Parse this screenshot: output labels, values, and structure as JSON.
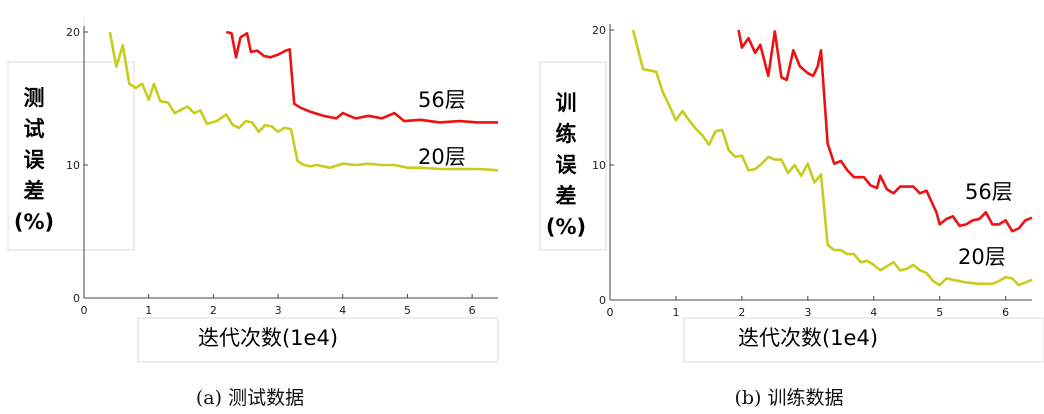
{
  "chart_data": [
    {
      "type": "line",
      "caption": "(a) 测试数据",
      "ylabel": "测试误差(%)",
      "xlabel": "迭代次数(1e4)",
      "xlim": [
        0,
        6.4
      ],
      "ylim": [
        0,
        20
      ],
      "xticks": [
        0,
        1,
        2,
        3,
        4,
        5,
        6
      ],
      "yticks": [
        0,
        10,
        20
      ],
      "series": [
        {
          "name": "56层",
          "color": "#ee1111",
          "points": [
            [
              2.2,
              20
            ],
            [
              2.28,
              19.9
            ],
            [
              2.35,
              18.1
            ],
            [
              2.42,
              19.6
            ],
            [
              2.52,
              19.9
            ],
            [
              2.58,
              18.5
            ],
            [
              2.68,
              18.6
            ],
            [
              2.78,
              18.2
            ],
            [
              2.88,
              18.1
            ],
            [
              3.0,
              18.3
            ],
            [
              3.12,
              18.6
            ],
            [
              3.18,
              18.7
            ],
            [
              3.25,
              14.6
            ],
            [
              3.35,
              14.3
            ],
            [
              3.5,
              14.0
            ],
            [
              3.7,
              13.7
            ],
            [
              3.9,
              13.5
            ],
            [
              4.0,
              13.9
            ],
            [
              4.2,
              13.5
            ],
            [
              4.4,
              13.7
            ],
            [
              4.6,
              13.5
            ],
            [
              4.8,
              13.9
            ],
            [
              4.95,
              13.3
            ],
            [
              5.2,
              13.4
            ],
            [
              5.5,
              13.2
            ],
            [
              5.8,
              13.3
            ],
            [
              6.1,
              13.2
            ],
            [
              6.4,
              13.2
            ]
          ]
        },
        {
          "name": "20层",
          "color": "#c8cc1c",
          "points": [
            [
              0.4,
              20
            ],
            [
              0.5,
              17.4
            ],
            [
              0.6,
              19
            ],
            [
              0.7,
              16.1
            ],
            [
              0.8,
              15.8
            ],
            [
              0.9,
              16.1
            ],
            [
              1.0,
              14.9
            ],
            [
              1.08,
              16.1
            ],
            [
              1.18,
              14.8
            ],
            [
              1.3,
              14.7
            ],
            [
              1.4,
              13.9
            ],
            [
              1.6,
              14.4
            ],
            [
              1.7,
              13.9
            ],
            [
              1.8,
              14.1
            ],
            [
              1.9,
              13.1
            ],
            [
              2.05,
              13.3
            ],
            [
              2.2,
              13.8
            ],
            [
              2.3,
              13.0
            ],
            [
              2.4,
              12.8
            ],
            [
              2.5,
              13.3
            ],
            [
              2.6,
              13.2
            ],
            [
              2.7,
              12.5
            ],
            [
              2.8,
              13.0
            ],
            [
              2.9,
              12.9
            ],
            [
              3.0,
              12.5
            ],
            [
              3.1,
              12.8
            ],
            [
              3.2,
              12.7
            ],
            [
              3.3,
              10.3
            ],
            [
              3.4,
              10.0
            ],
            [
              3.5,
              9.9
            ],
            [
              3.6,
              10.0
            ],
            [
              3.8,
              9.8
            ],
            [
              4.0,
              10.1
            ],
            [
              4.2,
              10.0
            ],
            [
              4.4,
              10.1
            ],
            [
              4.6,
              10.0
            ],
            [
              4.8,
              10.0
            ],
            [
              5.0,
              9.8
            ],
            [
              5.2,
              9.8
            ],
            [
              5.5,
              9.7
            ],
            [
              5.8,
              9.7
            ],
            [
              6.1,
              9.7
            ],
            [
              6.4,
              9.6
            ]
          ]
        }
      ]
    },
    {
      "type": "line",
      "caption": "(b) 训练数据",
      "ylabel": "训练误差(%)",
      "xlabel": "迭代次数(1e4)",
      "xlim": [
        0,
        6.4
      ],
      "ylim": [
        0,
        20
      ],
      "xticks": [
        0,
        1,
        2,
        3,
        4,
        5,
        6
      ],
      "yticks": [
        0,
        10,
        20
      ],
      "series": [
        {
          "name": "56层",
          "color": "#ee1111",
          "points": [
            [
              1.95,
              20
            ],
            [
              2.0,
              18.7
            ],
            [
              2.1,
              19.4
            ],
            [
              2.2,
              18.3
            ],
            [
              2.28,
              18.9
            ],
            [
              2.4,
              16.6
            ],
            [
              2.5,
              19.9
            ],
            [
              2.6,
              16.5
            ],
            [
              2.68,
              16.3
            ],
            [
              2.78,
              18.5
            ],
            [
              2.88,
              17.3
            ],
            [
              3.0,
              16.8
            ],
            [
              3.08,
              16.6
            ],
            [
              3.15,
              17.3
            ],
            [
              3.2,
              18.5
            ],
            [
              3.3,
              11.6
            ],
            [
              3.4,
              10.1
            ],
            [
              3.5,
              10.3
            ],
            [
              3.6,
              9.6
            ],
            [
              3.7,
              9.1
            ],
            [
              3.85,
              9.1
            ],
            [
              3.95,
              8.5
            ],
            [
              4.05,
              8.3
            ],
            [
              4.1,
              9.2
            ],
            [
              4.2,
              8.2
            ],
            [
              4.3,
              7.9
            ],
            [
              4.4,
              8.4
            ],
            [
              4.6,
              8.4
            ],
            [
              4.7,
              7.9
            ],
            [
              4.8,
              8.1
            ],
            [
              4.95,
              6.5
            ],
            [
              5.0,
              5.6
            ],
            [
              5.1,
              6.0
            ],
            [
              5.2,
              6.2
            ],
            [
              5.3,
              5.5
            ],
            [
              5.4,
              5.6
            ],
            [
              5.5,
              5.9
            ],
            [
              5.6,
              6.0
            ],
            [
              5.7,
              6.5
            ],
            [
              5.8,
              5.6
            ],
            [
              5.9,
              5.6
            ],
            [
              6.0,
              5.9
            ],
            [
              6.1,
              5.1
            ],
            [
              6.2,
              5.3
            ],
            [
              6.3,
              5.9
            ],
            [
              6.4,
              6.1
            ]
          ]
        },
        {
          "name": "20层",
          "color": "#c8cc1c",
          "points": [
            [
              0.35,
              20
            ],
            [
              0.5,
              17.1
            ],
            [
              0.7,
              16.9
            ],
            [
              0.8,
              15.4
            ],
            [
              0.9,
              14.4
            ],
            [
              1.0,
              13.3
            ],
            [
              1.1,
              14.0
            ],
            [
              1.2,
              13.3
            ],
            [
              1.3,
              12.7
            ],
            [
              1.4,
              12.2
            ],
            [
              1.5,
              11.5
            ],
            [
              1.6,
              12.5
            ],
            [
              1.7,
              12.6
            ],
            [
              1.8,
              11.1
            ],
            [
              1.9,
              10.6
            ],
            [
              2.0,
              10.7
            ],
            [
              2.1,
              9.6
            ],
            [
              2.2,
              9.7
            ],
            [
              2.3,
              10.1
            ],
            [
              2.4,
              10.6
            ],
            [
              2.5,
              10.4
            ],
            [
              2.6,
              10.4
            ],
            [
              2.7,
              9.4
            ],
            [
              2.8,
              10.0
            ],
            [
              2.9,
              9.2
            ],
            [
              3.0,
              10.1
            ],
            [
              3.1,
              8.7
            ],
            [
              3.2,
              9.3
            ],
            [
              3.3,
              4.1
            ],
            [
              3.4,
              3.7
            ],
            [
              3.5,
              3.7
            ],
            [
              3.6,
              3.4
            ],
            [
              3.7,
              3.4
            ],
            [
              3.8,
              2.8
            ],
            [
              3.9,
              2.9
            ],
            [
              4.0,
              2.6
            ],
            [
              4.1,
              2.2
            ],
            [
              4.2,
              2.5
            ],
            [
              4.3,
              2.8
            ],
            [
              4.4,
              2.2
            ],
            [
              4.5,
              2.3
            ],
            [
              4.6,
              2.6
            ],
            [
              4.7,
              2.2
            ],
            [
              4.8,
              2.0
            ],
            [
              4.9,
              1.4
            ],
            [
              5.0,
              1.1
            ],
            [
              5.1,
              1.6
            ],
            [
              5.2,
              1.5
            ],
            [
              5.4,
              1.3
            ],
            [
              5.6,
              1.2
            ],
            [
              5.8,
              1.2
            ],
            [
              5.9,
              1.4
            ],
            [
              6.0,
              1.7
            ],
            [
              6.1,
              1.6
            ],
            [
              6.2,
              1.1
            ],
            [
              6.3,
              1.3
            ],
            [
              6.4,
              1.5
            ]
          ]
        }
      ]
    }
  ]
}
